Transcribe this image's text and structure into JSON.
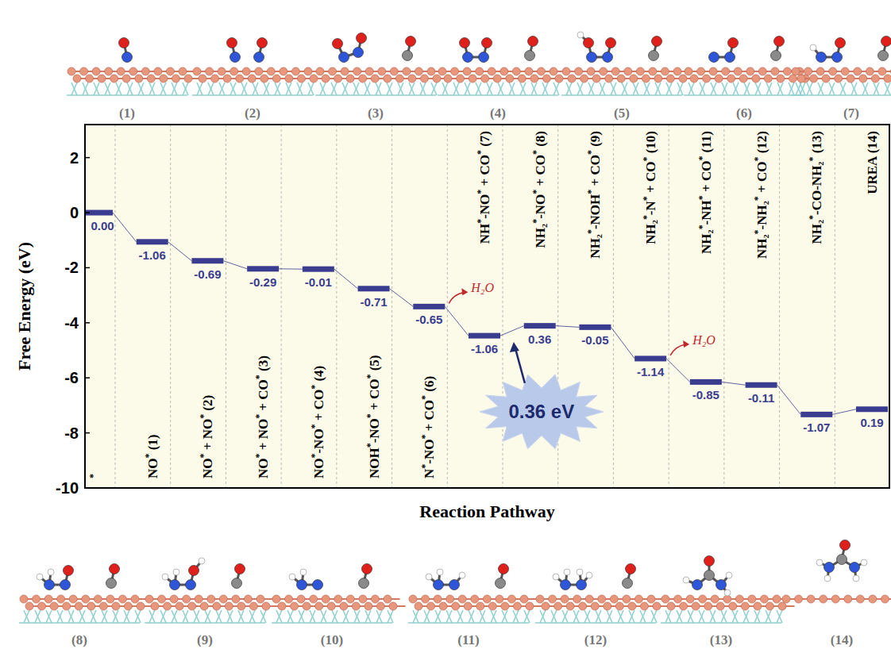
{
  "chart_data": {
    "type": "step",
    "x_label": "Reaction Pathway",
    "y_label": "Free Energy (eV)",
    "categories": [
      "*",
      "NO* (1)",
      "NO* + NO* (2)",
      "NO* + NO* + CO* (3)",
      "NO*-NO* + CO* (4)",
      "NOH*-NO* + CO* (5)",
      "N*-NO* + CO* (6)",
      "NH*-NO* + CO* (7)",
      "NH₂*-NO* + CO* (8)",
      "NH₂*-NOH* + CO* (9)",
      "NH₂*-N* + CO* (10)",
      "NH₂*-NH* + CO* (11)",
      "NH₂*-NH₂* + CO* (12)",
      "NH₂*-CO-NH₂* (13)",
      "UREA (14)"
    ],
    "values": [
      0,
      -1.06,
      -0.69,
      -0.29,
      -0.01,
      -0.71,
      -0.65,
      -1.06,
      0.36,
      -0.05,
      -1.14,
      -0.85,
      -0.11,
      -1.07,
      0.19
    ],
    "value_labels": [
      "0.00",
      "-1.06",
      "-0.69",
      "-0.29",
      "-0.01",
      "-0.71",
      "-0.65",
      "-1.06",
      "0.36",
      "-0.05",
      "-1.14",
      "-0.85",
      "-0.11",
      "-1.07",
      "0.19"
    ],
    "data_labels": true,
    "color": "#3a3d8f",
    "ylim": [
      -10,
      3.2
    ],
    "yticks": [
      -10,
      -8,
      -6,
      -4,
      -2,
      0,
      2
    ],
    "grid": false,
    "released": [
      {
        "text": "H₂O",
        "category": 6
      },
      {
        "text": "H₂O",
        "category": 10
      }
    ],
    "barrier": {
      "text": "0.36 eV",
      "category": 8
    }
  },
  "structures": {
    "labels": [
      "(1)",
      "(2)",
      "(3)",
      "(4)",
      "(5)",
      "(6)",
      "(7)",
      "(8)",
      "(9)",
      "(10)",
      "(11)",
      "(12)",
      "(13)",
      "(14)"
    ]
  }
}
